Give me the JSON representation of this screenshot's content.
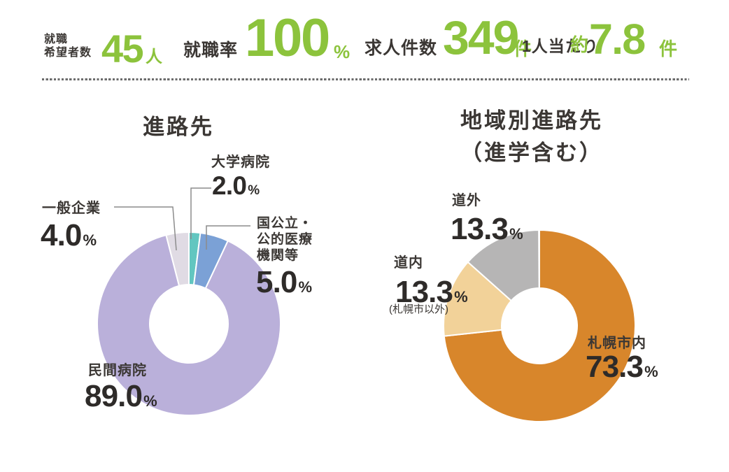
{
  "colors": {
    "accent_green": "#8CC33C",
    "text_dark": "#3B3734",
    "number_dark": "#2E2B29",
    "leader_line": "#8C8C8C",
    "divider_dot": "#6B6B6B"
  },
  "header": {
    "stats": [
      {
        "id": "jobseekers",
        "label_line1": "就職",
        "label_line2": "希望者数",
        "value": "45",
        "unit": "人"
      },
      {
        "id": "employment-rate",
        "label": "就職率",
        "value": "100",
        "unit": "%"
      },
      {
        "id": "job-openings",
        "label": "求人件数",
        "value": "349",
        "unit": "件"
      },
      {
        "id": "per-person",
        "label": "1人当たり",
        "prefix": "約",
        "value": "7.8",
        "unit": "件"
      }
    ]
  },
  "chart_data": [
    {
      "type": "pie",
      "subtype": "donut",
      "title": "進路先",
      "unit": "%",
      "direction": "clockwise",
      "start_angle_deg": -90,
      "slices": [
        {
          "label": "大学病院",
          "value": 2.0,
          "value_text": "2.0",
          "color": "#62C6C0"
        },
        {
          "label": "国公立・公的医療機関等",
          "label_lines": [
            "国公立・",
            "公的医療",
            "機関等"
          ],
          "value": 5.0,
          "value_text": "5.0",
          "color": "#7BA1D6"
        },
        {
          "label": "民間病院",
          "value": 89.0,
          "value_text": "89.0",
          "color": "#BAB0DA"
        },
        {
          "label": "一般企業",
          "value": 4.0,
          "value_text": "4.0",
          "color": "#E0DBE4"
        }
      ]
    },
    {
      "type": "pie",
      "subtype": "donut",
      "title": "地域別進路先（進学含む）",
      "title_lines": [
        "地域別進路先",
        "（進学含む）"
      ],
      "unit": "%",
      "direction": "clockwise",
      "start_angle_deg": -90,
      "slices": [
        {
          "label": "札幌市内",
          "value": 73.3,
          "value_text": "73.3",
          "color": "#D8862B"
        },
        {
          "label": "道内",
          "sublabel": "(札幌市以外)",
          "value": 13.3,
          "value_text": "13.3",
          "color": "#F2D299"
        },
        {
          "label": "道外",
          "value": 13.3,
          "value_text": "13.3",
          "color": "#B6B5B5"
        }
      ]
    }
  ]
}
